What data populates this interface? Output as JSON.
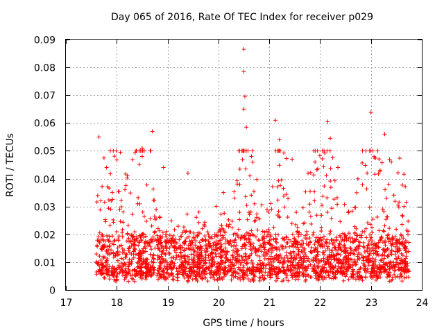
{
  "chart_data": {
    "type": "scatter",
    "title": "Day 065 of 2016, Rate Of TEC Index for receiver p029",
    "xlabel": "GPS time / hours",
    "ylabel": "ROTI / TECUs",
    "xlim": [
      17,
      24
    ],
    "ylim": [
      0,
      0.09
    ],
    "x_ticks": [
      "17",
      "18",
      "19",
      "20",
      "21",
      "22",
      "23",
      "24"
    ],
    "y_ticks": [
      "0",
      "0.01",
      "0.02",
      "0.03",
      "0.04",
      "0.05",
      "0.06",
      "0.07",
      "0.08",
      "0.09"
    ],
    "grid": true,
    "marker": "+",
    "color": "#ff0000",
    "data_range_hours": [
      17.6,
      23.75
    ],
    "baseline_roti": [
      0.005,
      0.02
    ],
    "notable_points": [
      {
        "x": 20.5,
        "y": 0.0865
      },
      {
        "x": 20.5,
        "y": 0.0785
      },
      {
        "x": 20.52,
        "y": 0.0695
      },
      {
        "x": 20.5,
        "y": 0.065
      },
      {
        "x": 23.0,
        "y": 0.0638
      },
      {
        "x": 21.12,
        "y": 0.061
      },
      {
        "x": 22.15,
        "y": 0.0605
      },
      {
        "x": 20.55,
        "y": 0.0585
      },
      {
        "x": 18.7,
        "y": 0.057
      },
      {
        "x": 23.27,
        "y": 0.056
      },
      {
        "x": 17.65,
        "y": 0.055
      },
      {
        "x": 22.2,
        "y": 0.0545
      },
      {
        "x": 21.2,
        "y": 0.054
      },
      {
        "x": 18.5,
        "y": 0.051
      },
      {
        "x": 18.5,
        "y": 0.048
      },
      {
        "x": 20.65,
        "y": 0.048
      },
      {
        "x": 21.45,
        "y": 0.047
      },
      {
        "x": 21.9,
        "y": 0.046
      },
      {
        "x": 18.92,
        "y": 0.044
      },
      {
        "x": 17.8,
        "y": 0.044
      },
      {
        "x": 22.35,
        "y": 0.044
      },
      {
        "x": 23.35,
        "y": 0.038
      },
      {
        "x": 19.4,
        "y": 0.042
      },
      {
        "x": 20.1,
        "y": 0.035
      },
      {
        "x": 23.65,
        "y": 0.03
      }
    ]
  }
}
